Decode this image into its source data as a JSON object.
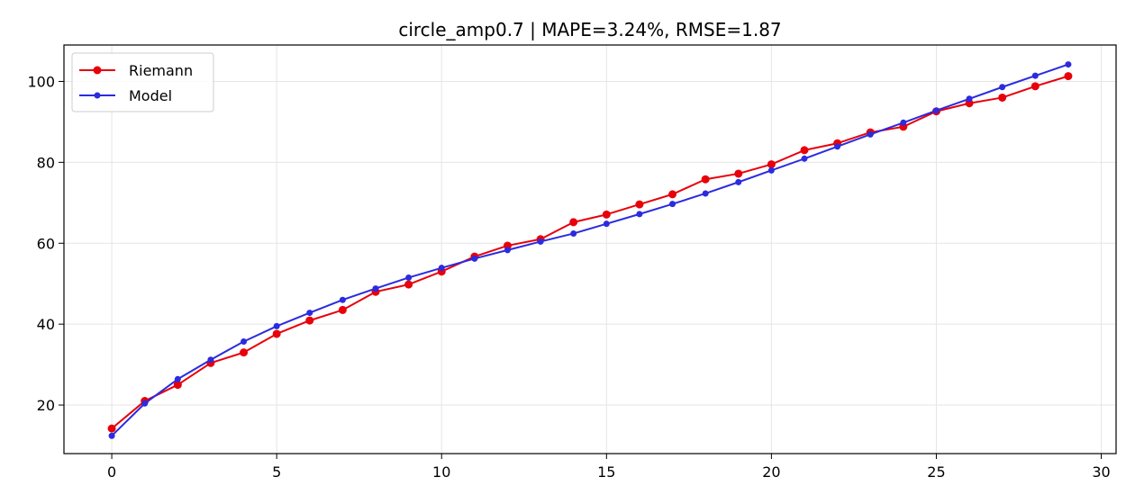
{
  "chart_data": {
    "type": "line",
    "title": "circle_amp0.7 | MAPE=3.24%, RMSE=1.87",
    "xlabel": "",
    "ylabel": "",
    "xlim": [
      -1.45,
      30.45
    ],
    "ylim": [
      8,
      109
    ],
    "x_ticks": [
      0,
      5,
      10,
      15,
      20,
      25,
      30
    ],
    "y_ticks": [
      20,
      40,
      60,
      80,
      100
    ],
    "grid": true,
    "legend_position": "upper-left",
    "x": [
      0,
      1,
      2,
      3,
      4,
      5,
      6,
      7,
      8,
      9,
      10,
      11,
      12,
      13,
      14,
      15,
      16,
      17,
      18,
      19,
      20,
      21,
      22,
      23,
      24,
      25,
      26,
      27,
      28,
      29
    ],
    "series": [
      {
        "name": "Riemann",
        "color": "#e8000b",
        "marker_size": 4.5,
        "values": [
          14.2,
          21.0,
          25.0,
          30.4,
          33.0,
          37.6,
          40.9,
          43.5,
          48.0,
          49.8,
          53.0,
          56.7,
          59.4,
          61.0,
          65.2,
          67.1,
          69.6,
          72.1,
          75.8,
          77.2,
          79.5,
          83.0,
          84.7,
          87.4,
          88.8,
          92.6,
          94.6,
          96.0,
          98.8,
          101.3
        ]
      },
      {
        "name": "Model",
        "color": "#2b2bdf",
        "marker_size": 3.5,
        "values": [
          12.4,
          20.4,
          26.4,
          31.2,
          35.7,
          39.5,
          42.8,
          46.0,
          48.8,
          51.5,
          53.9,
          56.2,
          58.3,
          60.4,
          62.4,
          64.8,
          67.2,
          69.7,
          72.3,
          75.1,
          78.0,
          80.9,
          83.9,
          86.9,
          89.8,
          92.8,
          95.7,
          98.6,
          101.4,
          104.2
        ]
      }
    ]
  }
}
